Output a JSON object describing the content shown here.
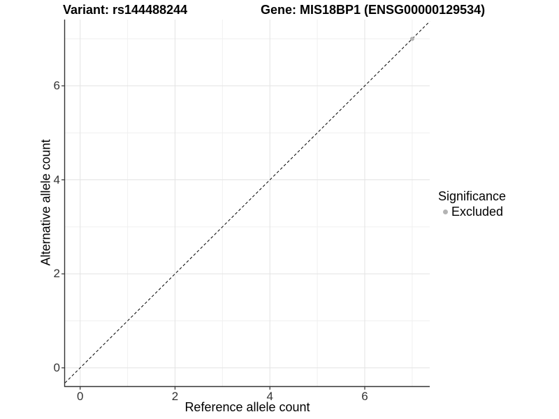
{
  "chart_data": {
    "type": "scatter",
    "title_left": "Variant: rs144488244",
    "title_right": "Gene: MIS18BP1 (ENSG00000129534)",
    "xlabel": "Reference allele count",
    "ylabel": "Alternative allele count",
    "xlim": [
      -0.32,
      7.37
    ],
    "ylim": [
      -0.39,
      7.41
    ],
    "x_ticks": [
      0,
      2,
      4,
      6
    ],
    "y_ticks": [
      0,
      2,
      4,
      6
    ],
    "x_minor_ticks": [
      1,
      3,
      5,
      7
    ],
    "y_minor_ticks": [
      1,
      3,
      5,
      7
    ],
    "grid": "major+minor",
    "identity_line": {
      "slope": 1,
      "intercept": 0,
      "style": "dashed",
      "color": "#000000"
    },
    "series": [
      {
        "name": "Excluded",
        "color": "#b3b3b3",
        "points": [
          [
            7,
            7
          ]
        ]
      }
    ],
    "legend": {
      "title": "Significance",
      "position": "right",
      "items": [
        {
          "label": "Excluded",
          "color": "#b3b3b3",
          "marker": "circle"
        }
      ]
    },
    "colors": {
      "background": "#ffffff",
      "axis_line": "#333333",
      "grid_major": "#e3e3e3",
      "grid_minor": "#f0f0f0",
      "tick_mark": "#333333",
      "tick_label": "#333333",
      "text": "#000000"
    }
  }
}
